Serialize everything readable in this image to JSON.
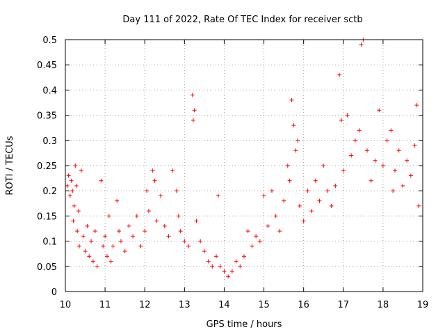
{
  "chart_data": {
    "type": "scatter",
    "title": "Day 111 of 2022, Rate Of TEC Index for receiver sctb",
    "xlabel": "GPS time / hours",
    "ylabel": "ROTI / TECUs",
    "xlim": [
      10,
      19
    ],
    "ylim": [
      0,
      0.5
    ],
    "xticks": [
      "10",
      "11",
      "12",
      "13",
      "14",
      "15",
      "16",
      "17",
      "18",
      "19"
    ],
    "yticks": [
      "0",
      "0.05",
      "0.1",
      "0.15",
      "0.2",
      "0.25",
      "0.3",
      "0.35",
      "0.4",
      "0.45",
      "0.5"
    ],
    "grid": true,
    "marker": "+",
    "series": [
      {
        "color": "#ff0000",
        "x": [
          10.05,
          10.08,
          10.12,
          10.15,
          10.18,
          10.2,
          10.22,
          10.25,
          10.28,
          10.3,
          10.33,
          10.35,
          10.4,
          10.45,
          10.5,
          10.55,
          10.6,
          10.65,
          10.7,
          10.75,
          10.8,
          10.9,
          10.95,
          11.0,
          11.05,
          11.1,
          11.15,
          11.2,
          11.3,
          11.35,
          11.4,
          11.5,
          11.6,
          11.7,
          11.8,
          11.9,
          12.0,
          12.05,
          12.1,
          12.2,
          12.25,
          12.3,
          12.4,
          12.5,
          12.6,
          12.7,
          12.8,
          12.85,
          12.9,
          13.0,
          13.1,
          13.2,
          13.22,
          13.25,
          13.3,
          13.4,
          13.5,
          13.6,
          13.7,
          13.8,
          13.85,
          13.9,
          14.0,
          14.1,
          14.2,
          14.3,
          14.4,
          14.5,
          14.6,
          14.7,
          14.8,
          14.9,
          15.0,
          15.1,
          15.2,
          15.3,
          15.4,
          15.5,
          15.6,
          15.65,
          15.7,
          15.75,
          15.8,
          15.85,
          15.9,
          16.0,
          16.1,
          16.2,
          16.3,
          16.4,
          16.5,
          16.6,
          16.7,
          16.8,
          16.9,
          16.95,
          17.0,
          17.1,
          17.2,
          17.3,
          17.4,
          17.45,
          17.5,
          17.6,
          17.7,
          17.8,
          17.9,
          18.0,
          18.1,
          18.2,
          18.25,
          18.3,
          18.4,
          18.5,
          18.6,
          18.7,
          18.8,
          18.85,
          18.9
        ],
        "y": [
          0.21,
          0.23,
          0.19,
          0.22,
          0.2,
          0.14,
          0.17,
          0.25,
          0.21,
          0.12,
          0.16,
          0.09,
          0.24,
          0.11,
          0.08,
          0.13,
          0.07,
          0.1,
          0.06,
          0.12,
          0.05,
          0.22,
          0.09,
          0.11,
          0.07,
          0.15,
          0.06,
          0.09,
          0.18,
          0.12,
          0.1,
          0.08,
          0.13,
          0.11,
          0.15,
          0.09,
          0.12,
          0.2,
          0.16,
          0.24,
          0.22,
          0.14,
          0.19,
          0.13,
          0.11,
          0.24,
          0.2,
          0.15,
          0.12,
          0.1,
          0.09,
          0.39,
          0.34,
          0.36,
          0.14,
          0.1,
          0.08,
          0.06,
          0.05,
          0.07,
          0.19,
          0.05,
          0.04,
          0.03,
          0.04,
          0.06,
          0.05,
          0.07,
          0.12,
          0.09,
          0.11,
          0.1,
          0.19,
          0.13,
          0.2,
          0.15,
          0.12,
          0.18,
          0.25,
          0.22,
          0.38,
          0.33,
          0.28,
          0.3,
          0.17,
          0.14,
          0.2,
          0.16,
          0.22,
          0.18,
          0.25,
          0.2,
          0.17,
          0.21,
          0.43,
          0.34,
          0.24,
          0.35,
          0.27,
          0.3,
          0.32,
          0.49,
          0.5,
          0.28,
          0.22,
          0.26,
          0.36,
          0.25,
          0.3,
          0.32,
          0.2,
          0.24,
          0.28,
          0.21,
          0.26,
          0.23,
          0.29,
          0.37,
          0.17
        ]
      }
    ]
  }
}
